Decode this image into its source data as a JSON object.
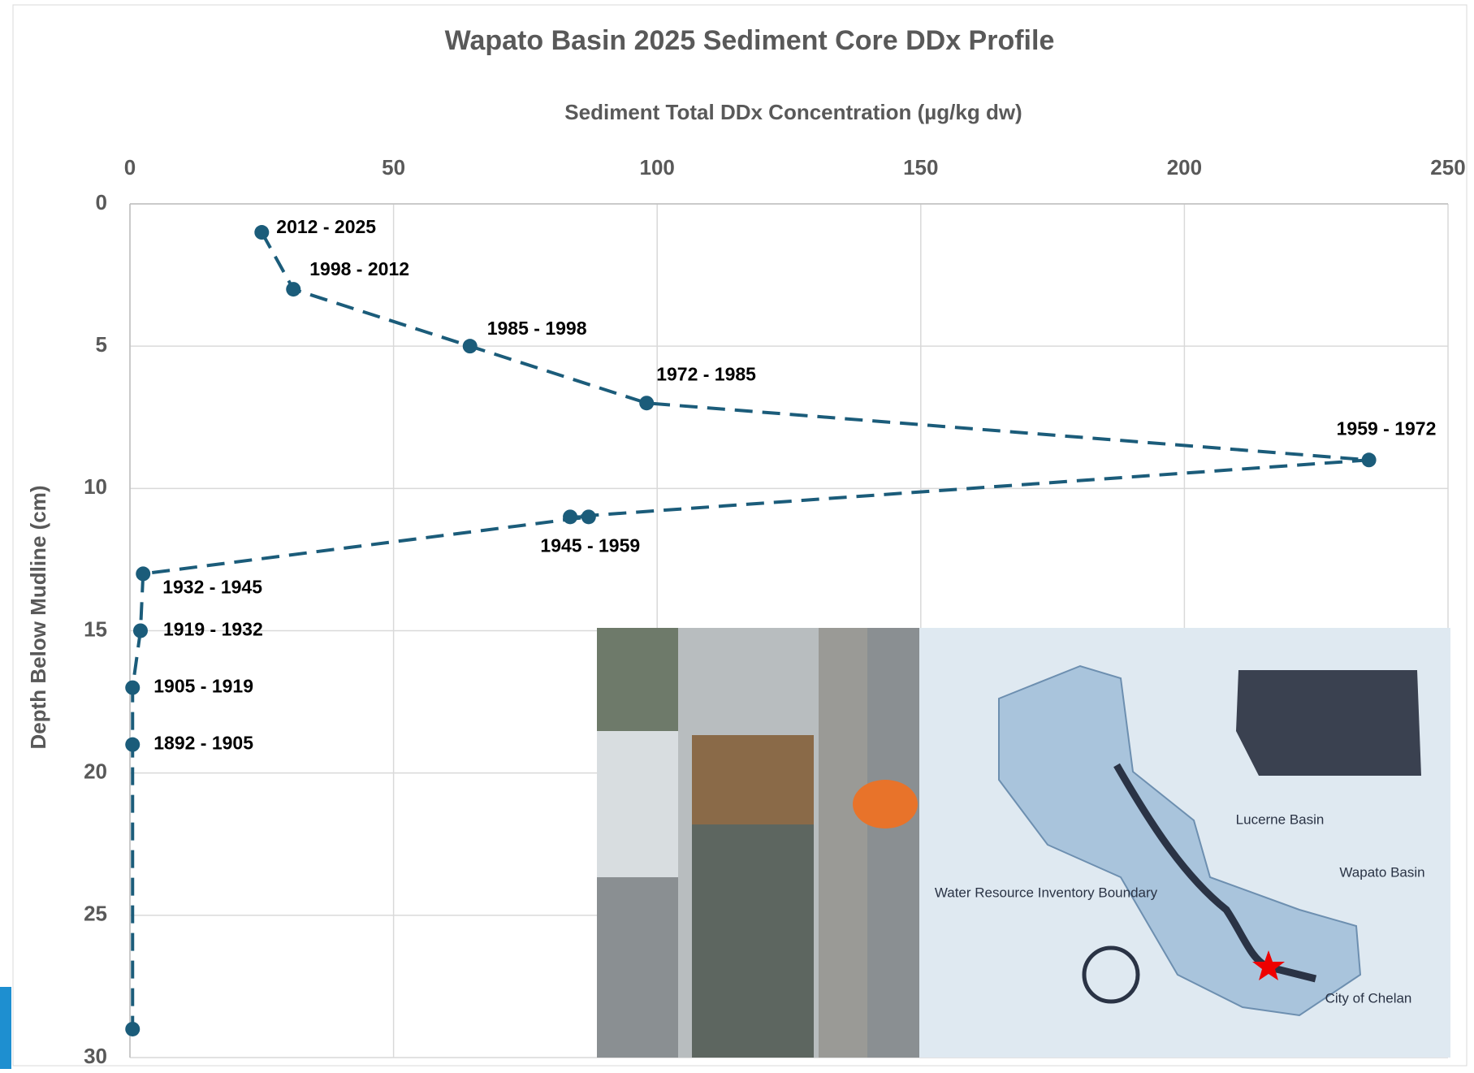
{
  "chart_data": {
    "type": "line",
    "title": "Wapato Basin 2025 Sediment Core DDx Profile",
    "x_label": "Sediment Total DDx Concentration (µg/kg dw)",
    "y_label": "Depth Below Mudline (cm)",
    "xlim": [
      0,
      250
    ],
    "xticks": [
      0,
      50,
      100,
      150,
      200,
      250
    ],
    "ylim": [
      0,
      30
    ],
    "yticks": [
      0,
      5,
      10,
      15,
      20,
      25,
      30
    ],
    "y_inverted": true,
    "grid": true,
    "series": [
      {
        "color": "#1b5c7a",
        "x": [
          25,
          31,
          64.5,
          98,
          235,
          83.5,
          87,
          2.5,
          2,
          0.5,
          0.5,
          0.5
        ],
        "values": [
          1,
          3,
          5,
          7,
          9,
          11,
          11,
          13,
          15,
          17,
          19,
          29
        ],
        "labels": [
          "2012 - 2025",
          "1998 - 2012",
          "1985 - 1998",
          "1972 - 1985",
          "1959 - 1972",
          null,
          "1945 - 1959",
          "1932 - 1945",
          "1919 - 1932",
          "1905 - 1919",
          "1892 - 1905",
          null
        ]
      }
    ]
  },
  "map_labels": [
    "Lucerne Basin",
    "Water Resource Inventory Boundary",
    "Wapato Basin",
    "City of Chelan"
  ]
}
